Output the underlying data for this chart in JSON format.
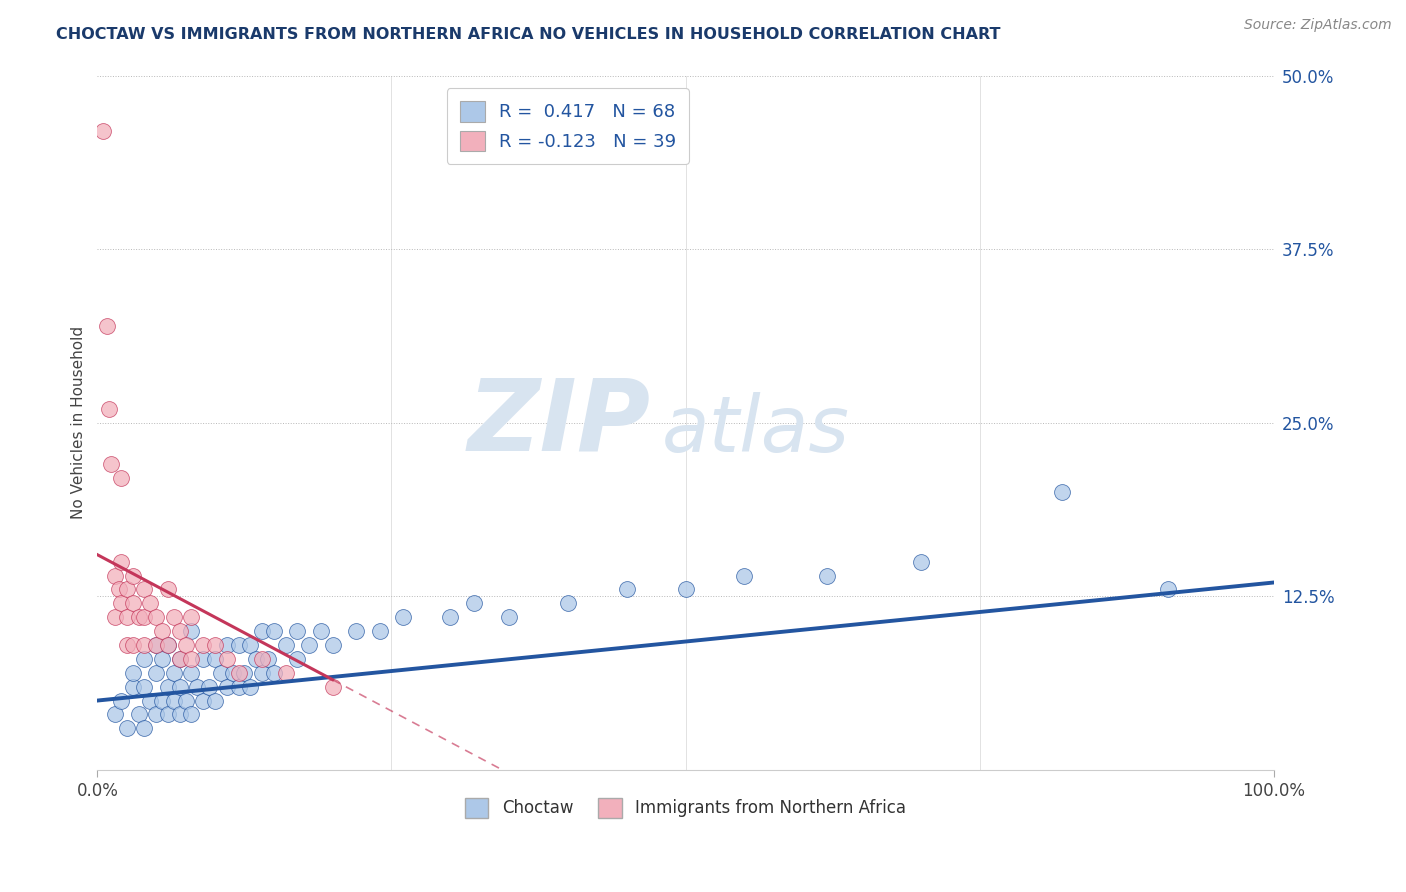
{
  "title": "CHOCTAW VS IMMIGRANTS FROM NORTHERN AFRICA NO VEHICLES IN HOUSEHOLD CORRELATION CHART",
  "source_text": "Source: ZipAtlas.com",
  "ylabel": "No Vehicles in Household",
  "xlabel": "",
  "legend_label_blue": "Choctaw",
  "legend_label_pink": "Immigrants from Northern Africa",
  "R_blue": 0.417,
  "N_blue": 68,
  "R_pink": -0.123,
  "N_pink": 39,
  "xlim": [
    0.0,
    1.0
  ],
  "ylim": [
    0.0,
    0.5
  ],
  "yticks": [
    0.0,
    0.125,
    0.25,
    0.375,
    0.5
  ],
  "ytick_labels": [
    "",
    "12.5%",
    "25.0%",
    "37.5%",
    "50.0%"
  ],
  "xtick_labels": [
    "0.0%",
    "100.0%"
  ],
  "color_blue": "#adc8e8",
  "color_pink": "#f2b0bc",
  "trendline_blue": "#2355a0",
  "trendline_pink": "#c4365a",
  "background_color": "#ffffff",
  "title_color": "#1a3a6b",
  "watermark_color": "#d8e4f0",
  "blue_scatter_x": [
    0.015,
    0.02,
    0.025,
    0.03,
    0.03,
    0.035,
    0.04,
    0.04,
    0.04,
    0.045,
    0.05,
    0.05,
    0.05,
    0.055,
    0.055,
    0.06,
    0.06,
    0.06,
    0.065,
    0.065,
    0.07,
    0.07,
    0.07,
    0.075,
    0.08,
    0.08,
    0.08,
    0.085,
    0.09,
    0.09,
    0.095,
    0.1,
    0.1,
    0.105,
    0.11,
    0.11,
    0.115,
    0.12,
    0.12,
    0.125,
    0.13,
    0.13,
    0.135,
    0.14,
    0.14,
    0.145,
    0.15,
    0.15,
    0.16,
    0.17,
    0.17,
    0.18,
    0.19,
    0.2,
    0.22,
    0.24,
    0.26,
    0.3,
    0.32,
    0.35,
    0.4,
    0.45,
    0.5,
    0.55,
    0.62,
    0.7,
    0.82,
    0.91
  ],
  "blue_scatter_y": [
    0.04,
    0.05,
    0.03,
    0.06,
    0.07,
    0.04,
    0.03,
    0.06,
    0.08,
    0.05,
    0.04,
    0.07,
    0.09,
    0.05,
    0.08,
    0.04,
    0.06,
    0.09,
    0.05,
    0.07,
    0.04,
    0.06,
    0.08,
    0.05,
    0.04,
    0.07,
    0.1,
    0.06,
    0.05,
    0.08,
    0.06,
    0.05,
    0.08,
    0.07,
    0.06,
    0.09,
    0.07,
    0.06,
    0.09,
    0.07,
    0.06,
    0.09,
    0.08,
    0.07,
    0.1,
    0.08,
    0.07,
    0.1,
    0.09,
    0.08,
    0.1,
    0.09,
    0.1,
    0.09,
    0.1,
    0.1,
    0.11,
    0.11,
    0.12,
    0.11,
    0.12,
    0.13,
    0.13,
    0.14,
    0.14,
    0.15,
    0.2,
    0.13
  ],
  "pink_scatter_x": [
    0.005,
    0.008,
    0.01,
    0.012,
    0.015,
    0.015,
    0.018,
    0.02,
    0.02,
    0.02,
    0.025,
    0.025,
    0.025,
    0.03,
    0.03,
    0.03,
    0.035,
    0.04,
    0.04,
    0.04,
    0.045,
    0.05,
    0.05,
    0.055,
    0.06,
    0.06,
    0.065,
    0.07,
    0.07,
    0.075,
    0.08,
    0.08,
    0.09,
    0.1,
    0.11,
    0.12,
    0.14,
    0.16,
    0.2
  ],
  "pink_scatter_y": [
    0.46,
    0.32,
    0.26,
    0.22,
    0.14,
    0.11,
    0.13,
    0.21,
    0.15,
    0.12,
    0.13,
    0.11,
    0.09,
    0.14,
    0.12,
    0.09,
    0.11,
    0.13,
    0.11,
    0.09,
    0.12,
    0.11,
    0.09,
    0.1,
    0.13,
    0.09,
    0.11,
    0.1,
    0.08,
    0.09,
    0.11,
    0.08,
    0.09,
    0.09,
    0.08,
    0.07,
    0.08,
    0.07,
    0.06
  ],
  "blue_trend_x0": 0.0,
  "blue_trend_x1": 1.0,
  "pink_trend_solid_x0": 0.0,
  "pink_trend_solid_x1": 0.2,
  "pink_trend_dash_x0": 0.2,
  "pink_trend_dash_x1": 0.65
}
